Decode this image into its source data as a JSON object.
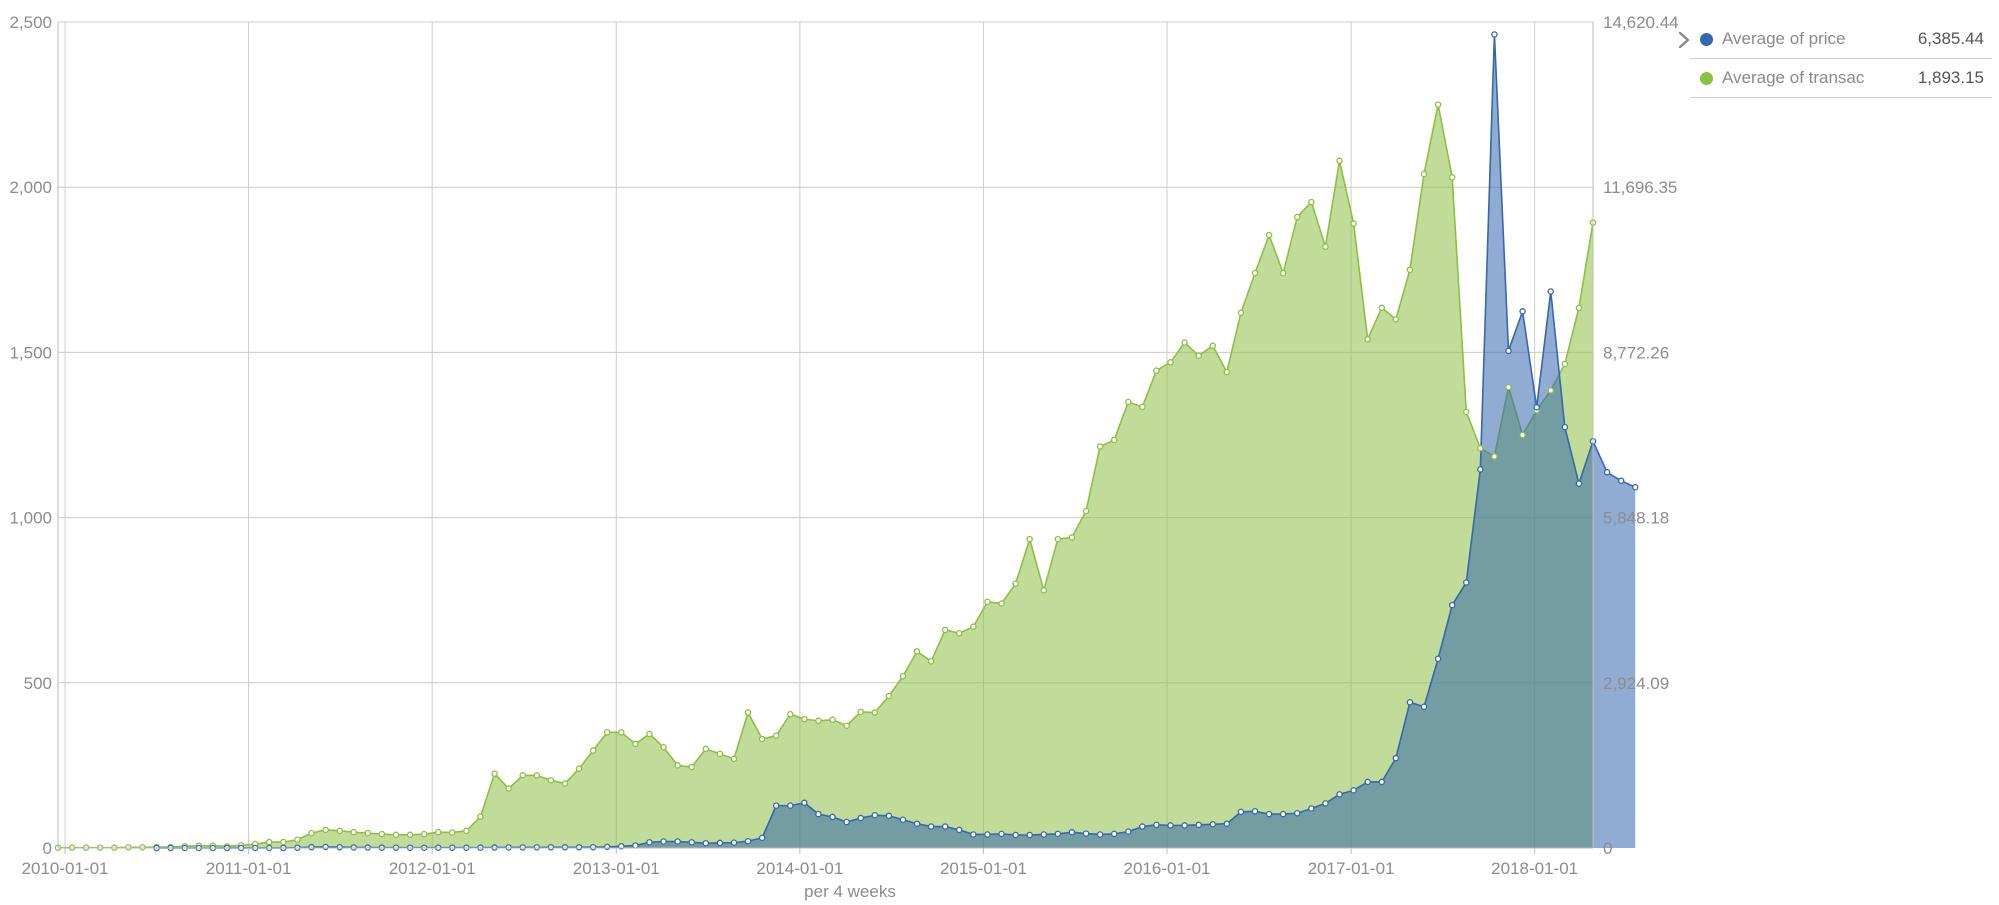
{
  "chart_data": {
    "type": "area",
    "xlabel": "per 4 weeks",
    "x_start": "2009-12-18",
    "x_step_days": 28,
    "x_tick_labels": [
      "2010-01-01",
      "2011-01-01",
      "2012-01-01",
      "2013-01-01",
      "2014-01-01",
      "2015-01-01",
      "2016-01-01",
      "2017-01-01",
      "2018-01-01"
    ],
    "y_left": {
      "range": [
        0,
        2500
      ],
      "ticks": [
        "0",
        "500",
        "1,000",
        "1,500",
        "2,000",
        "2,500"
      ],
      "tick_values": [
        0,
        500,
        1000,
        1500,
        2000,
        2500
      ]
    },
    "y_right": {
      "range": [
        0,
        14620.44
      ],
      "ticks": [
        "0",
        "2,924.09",
        "5,848.18",
        "8,772.26",
        "11,696.35",
        "14,620.44"
      ],
      "tick_values": [
        0,
        2924.09,
        5848.18,
        8772.26,
        11696.35,
        14620.44
      ]
    },
    "grid": true,
    "legend_position": "top-right",
    "series": [
      {
        "name": "Average of transac",
        "color": "#8cc043",
        "axis": "left",
        "legend_value": "1,893.15",
        "values": [
          1,
          1,
          1,
          1,
          1,
          2,
          2,
          3,
          3,
          5,
          7,
          7,
          5,
          8,
          12,
          18,
          18,
          25,
          45,
          55,
          52,
          48,
          45,
          42,
          40,
          40,
          42,
          48,
          47,
          52,
          95,
          225,
          180,
          220,
          220,
          205,
          195,
          240,
          295,
          350,
          350,
          315,
          345,
          305,
          250,
          245,
          300,
          285,
          270,
          410,
          330,
          340,
          405,
          390,
          385,
          388,
          370,
          412,
          410,
          460,
          520,
          595,
          565,
          660,
          650,
          670,
          745,
          740,
          800,
          935,
          780,
          935,
          940,
          1020,
          1215,
          1235,
          1350,
          1335,
          1445,
          1470,
          1530,
          1490,
          1520,
          1440,
          1620,
          1740,
          1855,
          1740,
          1910,
          1955,
          1820,
          2080,
          1890,
          1540,
          1635,
          1600,
          1750,
          2040,
          2250,
          2030,
          1320,
          1210,
          1185,
          1395,
          1250,
          1325,
          1385,
          1465,
          1635,
          1893
        ]
      },
      {
        "name": "Average of price",
        "color": "#3568ad",
        "axis": "right",
        "legend_value": "6,385.44",
        "values": [
          null,
          null,
          null,
          null,
          null,
          null,
          null,
          0.06,
          0.07,
          0.1,
          0.1,
          0.2,
          0.3,
          0.4,
          0.8,
          0.9,
          1,
          5,
          15,
          18,
          14,
          10,
          8,
          6,
          5,
          5,
          5,
          5,
          5,
          5,
          6,
          8,
          10,
          10,
          11,
          12,
          13,
          13,
          14,
          20,
          30,
          45,
          100,
          115,
          115,
          100,
          85,
          90,
          95,
          120,
          180,
          750,
          750,
          800,
          600,
          550,
          460,
          530,
          580,
          570,
          500,
          430,
          380,
          380,
          320,
          240,
          240,
          250,
          230,
          230,
          240,
          250,
          280,
          255,
          240,
          250,
          290,
          380,
          410,
          400,
          400,
          410,
          420,
          430,
          640,
          650,
          600,
          600,
          615,
          700,
          790,
          950,
          1020,
          1170,
          1170,
          1590,
          2580,
          2500,
          3350,
          4300,
          4700,
          6700,
          14400,
          8800,
          9500,
          7800,
          9850,
          7450,
          6450,
          7200,
          6650,
          6500,
          6385.44
        ]
      }
    ]
  }
}
